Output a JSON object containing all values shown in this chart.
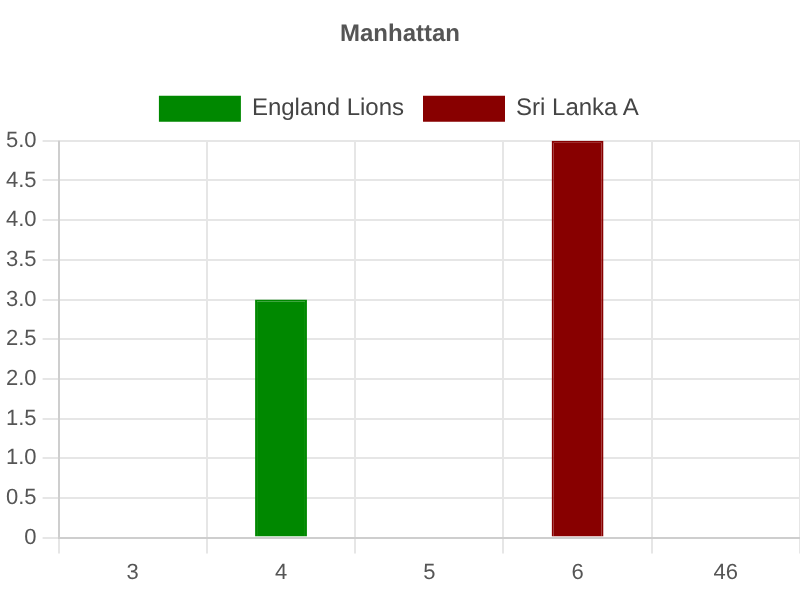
{
  "chart_data": {
    "type": "bar",
    "title": "Manhattan",
    "categories": [
      "3",
      "4",
      "5",
      "6",
      "46"
    ],
    "series": [
      {
        "name": "England Lions",
        "color": "#008800",
        "values": [
          null,
          3,
          null,
          null,
          null
        ]
      },
      {
        "name": "Sri Lanka A",
        "color": "#880000",
        "values": [
          null,
          null,
          null,
          5,
          null
        ]
      }
    ],
    "ylim": [
      0,
      5
    ],
    "yticks": [
      0,
      0.5,
      {
        "value": 1,
        "label": "1.0"
      },
      1.5,
      {
        "value": 2,
        "label": "2.0"
      },
      2.5,
      {
        "value": 3,
        "label": "3.0"
      },
      3.5,
      {
        "value": 4,
        "label": "4.0"
      },
      4.5,
      {
        "value": 5,
        "label": "5.0"
      }
    ],
    "grid": true,
    "legend": "top"
  }
}
